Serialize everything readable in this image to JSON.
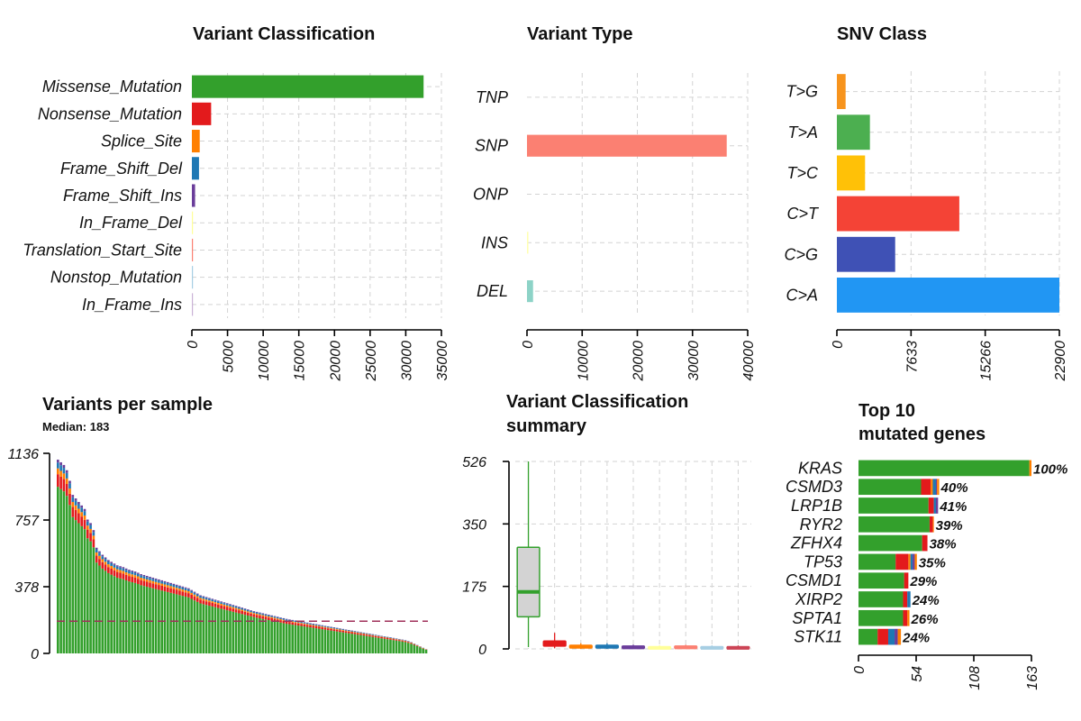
{
  "chart_data": [
    {
      "id": "variant-classification",
      "type": "bar",
      "orientation": "horizontal",
      "title": "Variant Classification",
      "categories": [
        "Missense_Mutation",
        "Nonsense_Mutation",
        "Splice_Site",
        "Frame_Shift_Del",
        "Frame_Shift_Ins",
        "In_Frame_Del",
        "Translation_Start_Site",
        "Nonstop_Mutation",
        "In_Frame_Ins"
      ],
      "values": [
        32500,
        2700,
        1100,
        1000,
        450,
        110,
        80,
        60,
        20
      ],
      "colors": [
        "#33A02C",
        "#E31A1C",
        "#FF7F00",
        "#1F78B4",
        "#6A3D9A",
        "#FFFF99",
        "#FB8072",
        "#A6CEE3",
        "#CAB2D6"
      ],
      "xlim": [
        0,
        35000
      ],
      "xticks": [
        "0",
        "5000",
        "10000",
        "15000",
        "20000",
        "25000",
        "30000",
        "35000"
      ],
      "grid": true
    },
    {
      "id": "variant-type",
      "type": "bar",
      "orientation": "horizontal",
      "title": "Variant Type",
      "categories": [
        "TNP",
        "SNP",
        "ONP",
        "INS",
        "DEL"
      ],
      "values": [
        0,
        36200,
        0,
        250,
        1100
      ],
      "colors": [
        "#8DD3C7",
        "#FB8072",
        "#BEBADA",
        "#FFFFB3",
        "#8DD3C7"
      ],
      "xlim": [
        0,
        40000
      ],
      "xticks": [
        "0",
        "10000",
        "20000",
        "30000",
        "40000"
      ],
      "grid": true
    },
    {
      "id": "snv-class",
      "type": "bar",
      "orientation": "horizontal",
      "title": "SNV Class",
      "categories": [
        "T>G",
        "T>A",
        "T>C",
        "C>T",
        "C>G",
        "C>A"
      ],
      "values": [
        900,
        3400,
        2900,
        12600,
        6000,
        22900
      ],
      "colors": [
        "#F7941D",
        "#4CAF50",
        "#FFC107",
        "#F44336",
        "#3F51B5",
        "#2196F3"
      ],
      "xlim": [
        0,
        22900
      ],
      "xticks": [
        "0",
        "7633",
        "15266",
        "22900"
      ],
      "grid": true
    },
    {
      "id": "variants-per-sample",
      "type": "bar",
      "stacked": true,
      "title": "Variants per sample",
      "subtitle": "Median: 183",
      "ylim": [
        0,
        1136
      ],
      "yticks": [
        "0",
        "378",
        "757",
        "1136"
      ],
      "median": 183,
      "median_color": "#A0305A",
      "totals": [
        1100,
        1085,
        1070,
        1040,
        980,
        900,
        880,
        860,
        840,
        820,
        760,
        740,
        700,
        600,
        580,
        560,
        545,
        530,
        520,
        510,
        500,
        495,
        490,
        482,
        475,
        470,
        465,
        458,
        450,
        445,
        440,
        435,
        430,
        425,
        420,
        415,
        410,
        405,
        400,
        395,
        390,
        385,
        380,
        375,
        370,
        360,
        350,
        340,
        330,
        325,
        320,
        315,
        310,
        305,
        300,
        295,
        290,
        285,
        280,
        275,
        270,
        265,
        260,
        255,
        250,
        245,
        240,
        236,
        232,
        228,
        224,
        220,
        216,
        212,
        208,
        204,
        200,
        196,
        193,
        190,
        187,
        184,
        181,
        178,
        175,
        172,
        169,
        166,
        163,
        160,
        157,
        154,
        151,
        148,
        145,
        142,
        139,
        136,
        133,
        130,
        127,
        124,
        121,
        118,
        115,
        112,
        109,
        106,
        103,
        100,
        97,
        94,
        91,
        88,
        85,
        82,
        79,
        75,
        70,
        64,
        56,
        48,
        40,
        32,
        24
      ],
      "segments": [
        {
          "name": "Missense_Mutation",
          "fraction": 0.86,
          "color": "#33A02C"
        },
        {
          "name": "Nonsense_Mutation",
          "fraction": 0.065,
          "color": "#E31A1C"
        },
        {
          "name": "Splice_Site",
          "fraction": 0.03,
          "color": "#FF7F00"
        },
        {
          "name": "Frame_Shift_Del",
          "fraction": 0.03,
          "color": "#1F78B4"
        },
        {
          "name": "Frame_Shift_Ins",
          "fraction": 0.015,
          "color": "#6A3D9A"
        }
      ]
    },
    {
      "id": "variant-classification-summary",
      "type": "box",
      "title_lines": [
        "Variant Classification",
        "summary"
      ],
      "ylim": [
        0,
        526
      ],
      "yticks": [
        "0",
        "175",
        "350",
        "526"
      ],
      "boxes": [
        {
          "color": "#33A02C",
          "fill": "#D3D3D3",
          "min": 5,
          "q1": 90,
          "median": 160,
          "q3": 285,
          "max": 526
        },
        {
          "color": "#E31A1C",
          "min": 2,
          "q1": 8,
          "median": 14,
          "q3": 22,
          "max": 45
        },
        {
          "color": "#FF7F00",
          "min": 0,
          "q1": 3,
          "median": 6,
          "q3": 10,
          "max": 16
        },
        {
          "color": "#1F78B4",
          "min": 0,
          "q1": 3,
          "median": 6,
          "q3": 10,
          "max": 16
        },
        {
          "color": "#6A3D9A",
          "min": 0,
          "q1": 2,
          "median": 4,
          "q3": 8,
          "max": 12
        },
        {
          "color": "#FFFF99",
          "min": 0,
          "q1": 1,
          "median": 3,
          "q3": 6,
          "max": 10
        },
        {
          "color": "#FB8072",
          "min": 0,
          "q1": 2,
          "median": 4,
          "q3": 8,
          "max": 12
        },
        {
          "color": "#A6CEE3",
          "min": 0,
          "q1": 1,
          "median": 3,
          "q3": 6,
          "max": 10
        },
        {
          "color": "#CC4455",
          "min": 0,
          "q1": 1,
          "median": 3,
          "q3": 6,
          "max": 10
        }
      ]
    },
    {
      "id": "top-mutated-genes",
      "type": "bar",
      "orientation": "horizontal",
      "stacked": true,
      "title_lines": [
        "Top 10",
        "mutated genes"
      ],
      "xlim": [
        0,
        163
      ],
      "xticks": [
        "0",
        "54",
        "108",
        "163"
      ],
      "genes": [
        {
          "name": "KRAS",
          "label": "100%",
          "segments": [
            {
              "v": 161,
              "c": "#33A02C"
            },
            {
              "v": 2,
              "c": "#FF7F00"
            }
          ]
        },
        {
          "name": "CSMD3",
          "label": "40%",
          "segments": [
            {
              "v": 59,
              "c": "#33A02C"
            },
            {
              "v": 9,
              "c": "#E31A1C"
            },
            {
              "v": 2,
              "c": "#FF7F00"
            },
            {
              "v": 3,
              "c": "#1F78B4"
            },
            {
              "v": 1,
              "c": "#6A3D9A"
            },
            {
              "v": 2,
              "c": "#FF7F00"
            }
          ]
        },
        {
          "name": "LRP1B",
          "label": "41%",
          "segments": [
            {
              "v": 66,
              "c": "#33A02C"
            },
            {
              "v": 5,
              "c": "#E31A1C"
            },
            {
              "v": 2,
              "c": "#1F78B4"
            },
            {
              "v": 2,
              "c": "#6A3D9A"
            }
          ]
        },
        {
          "name": "RYR2",
          "label": "39%",
          "segments": [
            {
              "v": 67,
              "c": "#33A02C"
            },
            {
              "v": 3,
              "c": "#E31A1C"
            },
            {
              "v": 1,
              "c": "#FF7F00"
            }
          ]
        },
        {
          "name": "ZFHX4",
          "label": "38%",
          "segments": [
            {
              "v": 60,
              "c": "#33A02C"
            },
            {
              "v": 5,
              "c": "#E31A1C"
            }
          ]
        },
        {
          "name": "TP53",
          "label": "35%",
          "segments": [
            {
              "v": 35,
              "c": "#33A02C"
            },
            {
              "v": 12,
              "c": "#E31A1C"
            },
            {
              "v": 2,
              "c": "#FF7F00"
            },
            {
              "v": 2,
              "c": "#1F78B4"
            },
            {
              "v": 2,
              "c": "#6A3D9A"
            },
            {
              "v": 2,
              "c": "#FF7F00"
            }
          ]
        },
        {
          "name": "CSMD1",
          "label": "29%",
          "segments": [
            {
              "v": 43,
              "c": "#33A02C"
            },
            {
              "v": 4,
              "c": "#E31A1C"
            }
          ]
        },
        {
          "name": "XIRP2",
          "label": "24%",
          "segments": [
            {
              "v": 42,
              "c": "#33A02C"
            },
            {
              "v": 4,
              "c": "#E31A1C"
            },
            {
              "v": 3,
              "c": "#1F78B4"
            }
          ]
        },
        {
          "name": "SPTA1",
          "label": "26%",
          "segments": [
            {
              "v": 42,
              "c": "#33A02C"
            },
            {
              "v": 4,
              "c": "#E31A1C"
            },
            {
              "v": 2,
              "c": "#FF7F00"
            }
          ]
        },
        {
          "name": "STK11",
          "label": "24%",
          "segments": [
            {
              "v": 18,
              "c": "#33A02C"
            },
            {
              "v": 10,
              "c": "#E31A1C"
            },
            {
              "v": 6,
              "c": "#1F78B4"
            },
            {
              "v": 3,
              "c": "#6A3D9A"
            },
            {
              "v": 3,
              "c": "#FF7F00"
            }
          ]
        }
      ]
    }
  ]
}
